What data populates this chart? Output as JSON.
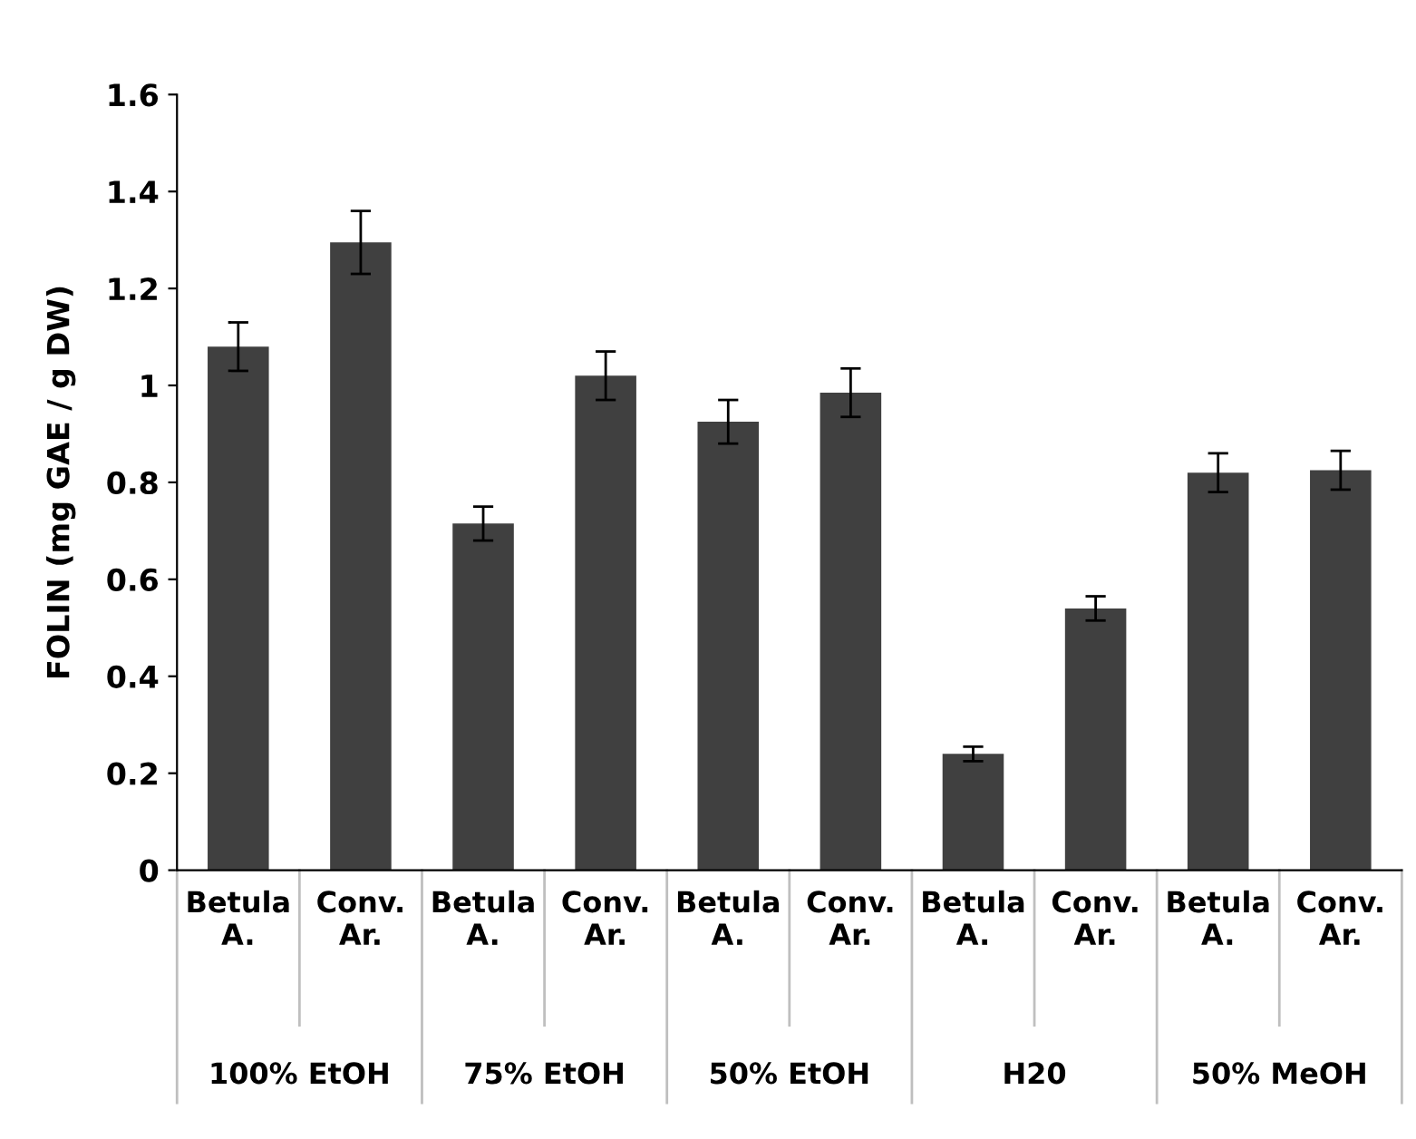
{
  "chart_data": {
    "type": "bar",
    "ylabel": "FOLIN (mg GAE / g DW)",
    "categories": [
      "Betula A.",
      "Conv. Ar.",
      "Betula A.",
      "Conv. Ar.",
      "Betula A.",
      "Conv. Ar.",
      "Betula A.",
      "Conv. Ar.",
      "Betula A.",
      "Conv. Ar."
    ],
    "values": [
      1.08,
      1.295,
      0.715,
      1.02,
      0.925,
      0.985,
      0.24,
      0.54,
      0.82,
      0.825
    ],
    "errors": [
      0.05,
      0.065,
      0.035,
      0.05,
      0.045,
      0.05,
      0.015,
      0.025,
      0.04,
      0.04
    ],
    "color": "#404040",
    "ylim": [
      0,
      1.6
    ],
    "yticks": [
      0,
      0.2,
      0.4,
      0.6,
      0.8,
      1,
      1.2,
      1.4,
      1.6
    ],
    "grid": false,
    "annotations": [
      "100% EtOH",
      "75% EtOH",
      "50% EtOH",
      "H20",
      "50% MeOH"
    ]
  }
}
